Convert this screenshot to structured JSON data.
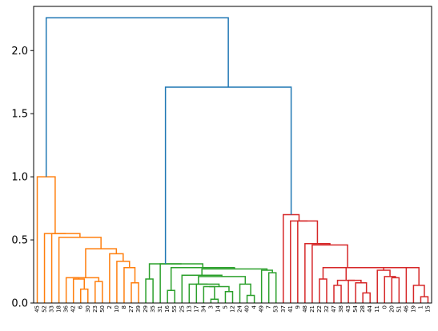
{
  "chart_data": {
    "type": "dendrogram",
    "title": "",
    "xlabel": "",
    "ylabel": "",
    "ylim": [
      0,
      2.35
    ],
    "yticks": [
      "0.0",
      "0.5",
      "1.0",
      "1.5",
      "2.0"
    ],
    "grid": false,
    "legend": "none",
    "colors": {
      "above_threshold": "#1f77b4",
      "cluster_1": "#ff7f0e",
      "cluster_2": "#2ca02c",
      "cluster_3": "#d62728"
    },
    "leaves": [
      "45",
      "52",
      "33",
      "18",
      "36",
      "42",
      "6",
      "30",
      "23",
      "50",
      "2",
      "10",
      "8",
      "27",
      "39",
      "29",
      "35",
      "31",
      "16",
      "55",
      "25",
      "13",
      "17",
      "34",
      "3",
      "14",
      "5",
      "12",
      "24",
      "40",
      "4",
      "49",
      "7",
      "53",
      "37",
      "41",
      "9",
      "48",
      "21",
      "22",
      "32",
      "47",
      "38",
      "43",
      "54",
      "28",
      "44",
      "11",
      "0",
      "20",
      "51",
      "46",
      "19",
      "1",
      "15"
    ],
    "merges": [
      {
        "left": "6",
        "right": "30",
        "height": 0.11,
        "color": "cluster_1"
      },
      {
        "left": "27",
        "right": "39",
        "height": 0.16,
        "color": "cluster_1"
      },
      {
        "left": "23",
        "right": "50",
        "height": 0.17,
        "color": "cluster_1"
      },
      {
        "left": "42",
        "right": "c1",
        "height": 0.19,
        "color": "cluster_1"
      },
      {
        "left": "36",
        "right": "c4",
        "height": 0.2,
        "color": "cluster_1"
      },
      {
        "left": "8",
        "right": "c2",
        "height": 0.28,
        "color": "cluster_1"
      },
      {
        "left": "10",
        "right": "c6",
        "height": 0.33,
        "color": "cluster_1"
      },
      {
        "left": "c5",
        "right": "c3",
        "height": 0.2,
        "color": "cluster_1"
      },
      {
        "left": "2",
        "right": "c7",
        "height": 0.39,
        "color": "cluster_1"
      },
      {
        "left": "c8",
        "right": "c9",
        "height": 0.43,
        "color": "cluster_1"
      },
      {
        "left": "18",
        "right": "c10",
        "height": 0.52,
        "color": "cluster_1"
      },
      {
        "left": "33",
        "right": "c11",
        "height": 0.55,
        "color": "cluster_1"
      },
      {
        "left": "52",
        "right": "c12",
        "height": 0.55,
        "color": "cluster_1"
      },
      {
        "left": "45",
        "right": "c13",
        "height": 1.0,
        "color": "cluster_1"
      },
      {
        "left": "3",
        "right": "14",
        "height": 0.03,
        "color": "cluster_2"
      },
      {
        "left": "5",
        "right": "12",
        "height": 0.09,
        "color": "cluster_2"
      },
      {
        "left": "40",
        "right": "4",
        "height": 0.06,
        "color": "cluster_2"
      },
      {
        "left": "34",
        "right": "c15",
        "height": 0.13,
        "color": "cluster_2"
      },
      {
        "left": "c18",
        "right": "c16",
        "height": 0.13,
        "color": "cluster_2"
      },
      {
        "left": "17",
        "right": "c19",
        "height": 0.15,
        "color": "cluster_2"
      },
      {
        "left": "13",
        "right": "c20",
        "height": 0.15,
        "color": "cluster_2"
      },
      {
        "left": "24",
        "right": "c17",
        "height": 0.15,
        "color": "cluster_2"
      },
      {
        "left": "c21",
        "right": "c22",
        "height": 0.21,
        "color": "cluster_2"
      },
      {
        "left": "7",
        "right": "53",
        "height": 0.24,
        "color": "cluster_2"
      },
      {
        "left": "25",
        "right": "c23",
        "height": 0.22,
        "color": "cluster_2"
      },
      {
        "left": "49",
        "right": "c24",
        "height": 0.26,
        "color": "cluster_2"
      },
      {
        "left": "c25",
        "right": "c26",
        "height": 0.27,
        "color": "cluster_2"
      },
      {
        "left": "16",
        "right": "55",
        "height": 0.1,
        "color": "cluster_2"
      },
      {
        "left": "c28",
        "right": "c27",
        "height": 0.28,
        "color": "cluster_2"
      },
      {
        "left": "31",
        "right": "c29",
        "height": 0.31,
        "color": "cluster_2"
      },
      {
        "left": "29",
        "right": "35",
        "height": 0.19,
        "color": "cluster_2"
      },
      {
        "left": "c31",
        "right": "c30",
        "height": 0.31,
        "color": "cluster_2"
      },
      {
        "left": "47",
        "right": "38",
        "height": 0.14,
        "color": "cluster_3"
      },
      {
        "left": "28",
        "right": "44",
        "height": 0.08,
        "color": "cluster_3"
      },
      {
        "left": "54",
        "right": "c34",
        "height": 0.16,
        "color": "cluster_3"
      },
      {
        "left": "43",
        "right": "c35",
        "height": 0.18,
        "color": "cluster_3"
      },
      {
        "left": "c33",
        "right": "c36",
        "height": 0.18,
        "color": "cluster_3"
      },
      {
        "left": "20",
        "right": "51",
        "height": 0.2,
        "color": "cluster_3"
      },
      {
        "left": "0",
        "right": "c38",
        "height": 0.21,
        "color": "cluster_3"
      },
      {
        "left": "11",
        "right": "c39",
        "height": 0.26,
        "color": "cluster_3"
      },
      {
        "left": "1",
        "right": "15",
        "height": 0.05,
        "color": "cluster_3"
      },
      {
        "left": "19",
        "right": "c41",
        "height": 0.14,
        "color": "cluster_3"
      },
      {
        "left": "46",
        "right": "c42",
        "height": 0.28,
        "color": "cluster_3"
      },
      {
        "left": "c40",
        "right": "c43",
        "height": 0.28,
        "color": "cluster_3"
      },
      {
        "left": "c37",
        "right": "c44",
        "height": 0.28,
        "color": "cluster_3"
      },
      {
        "left": "22",
        "right": "32",
        "height": 0.19,
        "color": "cluster_3"
      },
      {
        "left": "c46",
        "right": "c45",
        "height": 0.28,
        "color": "cluster_3"
      },
      {
        "left": "21",
        "right": "c47",
        "height": 0.46,
        "color": "cluster_3"
      },
      {
        "left": "48",
        "right": "c48",
        "height": 0.47,
        "color": "cluster_3"
      },
      {
        "left": "9",
        "right": "c49",
        "height": 0.65,
        "color": "cluster_3"
      },
      {
        "left": "41",
        "right": "c50",
        "height": 0.65,
        "color": "cluster_3"
      },
      {
        "left": "37",
        "right": "c51",
        "height": 0.7,
        "color": "cluster_3"
      },
      {
        "left": "c32",
        "right": "c52",
        "height": 1.71,
        "color": "above_threshold"
      },
      {
        "left": "c14",
        "right": "c53",
        "height": 2.26,
        "color": "above_threshold"
      }
    ]
  }
}
